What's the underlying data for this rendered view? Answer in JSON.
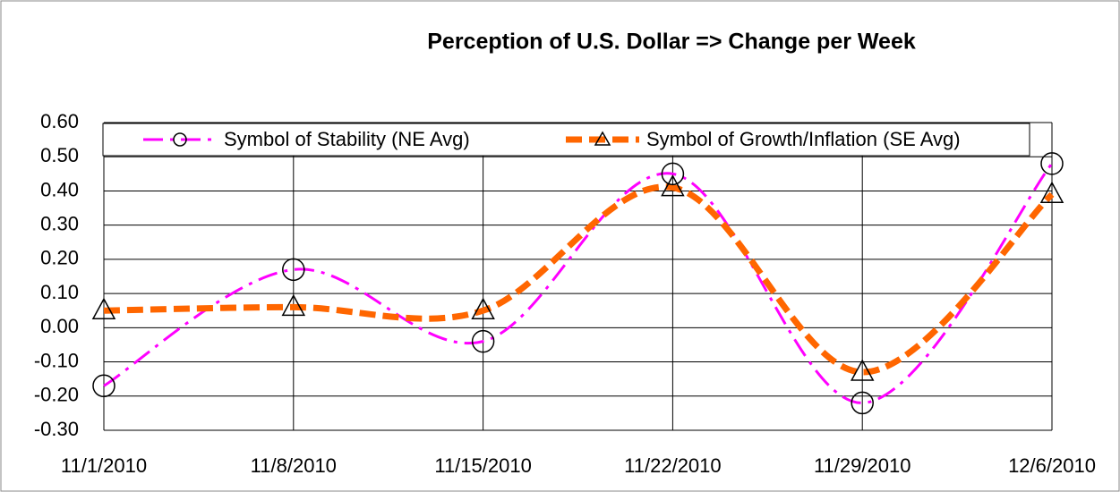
{
  "chart_data": {
    "type": "line",
    "title": "Perception of U.S. Dollar => Change per Week",
    "categories": [
      "11/1/2010",
      "11/8/2010",
      "11/15/2010",
      "11/22/2010",
      "11/29/2010",
      "12/6/2010"
    ],
    "series": [
      {
        "name": "Symbol of Stability (NE Avg)",
        "color": "#ff00ff",
        "values": [
          -0.17,
          0.17,
          -0.04,
          0.45,
          -0.22,
          0.48
        ]
      },
      {
        "name": "Symbol of Growth/Inflation (SE Avg)",
        "color": "#ff6600",
        "values": [
          0.05,
          0.06,
          0.05,
          0.41,
          -0.13,
          0.39
        ]
      }
    ],
    "ylim": [
      -0.3,
      0.6
    ],
    "yticks": [
      {
        "value": -0.3,
        "label": "-0.30"
      },
      {
        "value": -0.2,
        "label": "-0.20"
      },
      {
        "value": -0.1,
        "label": "-0.10"
      },
      {
        "value": 0,
        "label": "0.00"
      },
      {
        "value": 0.1,
        "label": "0.10"
      },
      {
        "value": 0.2,
        "label": "0.20"
      },
      {
        "value": 0.3,
        "label": "0.30"
      },
      {
        "value": 0.4,
        "label": "0.40"
      },
      {
        "value": 0.5,
        "label": "0.50"
      },
      {
        "value": 0.6,
        "label": "0.60"
      }
    ],
    "grid": true,
    "legend": "top"
  }
}
